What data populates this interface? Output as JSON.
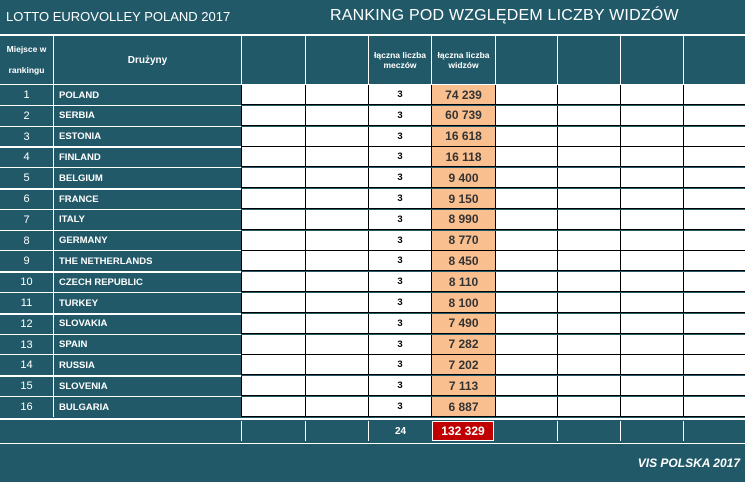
{
  "header": {
    "event_title": "LOTTO EUROVOLLEY POLAND 2017",
    "ranking_title": "RANKING POD WZGLĘDEM LICZBY WIDZÓW"
  },
  "columns": {
    "rank_line1": "Miejsce w",
    "rank_line2": "rankingu",
    "team": "Drużyny",
    "matches_line1": "łączna liczba",
    "matches_line2": "meczów",
    "viewers_line1": "łączna liczba",
    "viewers_line2": "widzów"
  },
  "rows": [
    {
      "rank": "1",
      "team": "POLAND",
      "matches": "3",
      "viewers": "74 239"
    },
    {
      "rank": "2",
      "team": "SERBIA",
      "matches": "3",
      "viewers": "60 739"
    },
    {
      "rank": "3",
      "team": "ESTONIA",
      "matches": "3",
      "viewers": "16 618"
    },
    {
      "rank": "4",
      "team": "FINLAND",
      "matches": "3",
      "viewers": "16 118"
    },
    {
      "rank": "5",
      "team": "BELGIUM",
      "matches": "3",
      "viewers": "9 400"
    },
    {
      "rank": "6",
      "team": "FRANCE",
      "matches": "3",
      "viewers": "9 150"
    },
    {
      "rank": "7",
      "team": "ITALY",
      "matches": "3",
      "viewers": "8 990"
    },
    {
      "rank": "8",
      "team": "GERMANY",
      "matches": "3",
      "viewers": "8 770"
    },
    {
      "rank": "9",
      "team": "THE NETHERLANDS",
      "matches": "3",
      "viewers": "8 450"
    },
    {
      "rank": "10",
      "team": "CZECH REPUBLIC",
      "matches": "3",
      "viewers": "8 110"
    },
    {
      "rank": "11",
      "team": "TURKEY",
      "matches": "3",
      "viewers": "8 100"
    },
    {
      "rank": "12",
      "team": "SLOVAKIA",
      "matches": "3",
      "viewers": "7 490"
    },
    {
      "rank": "13",
      "team": "SPAIN",
      "matches": "3",
      "viewers": "7 282"
    },
    {
      "rank": "14",
      "team": "RUSSIA",
      "matches": "3",
      "viewers": "7 202"
    },
    {
      "rank": "15",
      "team": "SLOVENIA",
      "matches": "3",
      "viewers": "7 113"
    },
    {
      "rank": "16",
      "team": "BULGARIA",
      "matches": "3",
      "viewers": "6 887"
    }
  ],
  "totals": {
    "matches": "24",
    "viewers": "132 329"
  },
  "footer": "VIS POLSKA 2017",
  "colors": {
    "background": "#215968",
    "viewers_highlight": "#fabf8f",
    "total_highlight": "#c00000"
  }
}
